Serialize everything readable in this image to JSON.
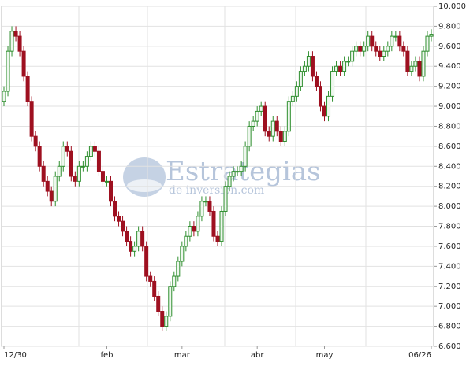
{
  "chart_data": {
    "type": "candlestick",
    "watermark": {
      "brand": "Estrategias",
      "sub": "de inversión.com"
    },
    "categories": [
      "12/30",
      null,
      null,
      null,
      null,
      null,
      null,
      null,
      null,
      null,
      null,
      null,
      null,
      null,
      null,
      null,
      null,
      null,
      null,
      null,
      null,
      null,
      null,
      null,
      null,
      null,
      "feb",
      null,
      null,
      null,
      null,
      null,
      null,
      null,
      null,
      null,
      null,
      null,
      null,
      null,
      null,
      null,
      null,
      null,
      null,
      "mar",
      null,
      null,
      null,
      null,
      null,
      null,
      null,
      null,
      null,
      null,
      null,
      null,
      null,
      null,
      null,
      null,
      null,
      null,
      "abr",
      null,
      null,
      null,
      null,
      null,
      null,
      null,
      null,
      null,
      null,
      null,
      null,
      null,
      null,
      null,
      null,
      "may",
      null,
      null,
      null,
      null,
      null,
      null,
      null,
      null,
      null,
      null,
      null,
      null,
      null,
      null,
      null,
      null,
      null,
      null,
      null,
      null,
      null,
      null,
      null,
      null,
      null,
      null,
      "06/26"
    ],
    "open": [
      9.05,
      9.15,
      9.55,
      9.75,
      9.7,
      9.55,
      9.3,
      9.05,
      8.7,
      8.6,
      8.4,
      8.25,
      8.15,
      8.05,
      8.3,
      8.4,
      8.6,
      8.55,
      8.3,
      8.25,
      8.4,
      8.4,
      8.5,
      8.6,
      8.55,
      8.35,
      8.25,
      8.25,
      8.05,
      7.9,
      7.85,
      7.75,
      7.65,
      7.55,
      7.6,
      7.75,
      7.6,
      7.3,
      7.25,
      7.1,
      6.95,
      6.8,
      6.9,
      7.2,
      7.3,
      7.45,
      7.6,
      7.7,
      7.8,
      7.75,
      7.9,
      8.05,
      8.05,
      7.95,
      7.7,
      7.65,
      7.95,
      8.2,
      8.3,
      8.35,
      8.35,
      8.4,
      8.6,
      8.8,
      8.85,
      8.95,
      9.0,
      8.75,
      8.7,
      8.85,
      8.75,
      8.65,
      8.75,
      9.05,
      9.1,
      9.2,
      9.35,
      9.4,
      9.5,
      9.3,
      9.2,
      9.0,
      8.9,
      9.1,
      9.35,
      9.4,
      9.35,
      9.45,
      9.45,
      9.55,
      9.6,
      9.55,
      9.6,
      9.7,
      9.6,
      9.55,
      9.5,
      9.55,
      9.6,
      9.7,
      9.7,
      9.6,
      9.55,
      9.35,
      9.4,
      9.45,
      9.3,
      9.55,
      9.7
    ],
    "high": [
      9.2,
      9.6,
      9.8,
      9.8,
      9.75,
      9.6,
      9.35,
      9.1,
      8.75,
      8.65,
      8.45,
      8.3,
      8.2,
      8.35,
      8.45,
      8.65,
      8.65,
      8.6,
      8.35,
      8.45,
      8.45,
      8.55,
      8.65,
      8.65,
      8.6,
      8.4,
      8.3,
      8.3,
      8.1,
      7.95,
      7.9,
      7.8,
      7.7,
      7.65,
      7.8,
      7.8,
      7.65,
      7.35,
      7.3,
      7.15,
      7.0,
      6.95,
      7.25,
      7.35,
      7.5,
      7.65,
      7.75,
      7.85,
      7.85,
      7.95,
      8.1,
      8.1,
      8.1,
      8.0,
      7.75,
      8.0,
      8.25,
      8.35,
      8.4,
      8.4,
      8.45,
      8.65,
      8.85,
      8.9,
      9.0,
      9.05,
      9.05,
      8.8,
      8.9,
      8.9,
      8.8,
      8.8,
      9.1,
      9.15,
      9.25,
      9.4,
      9.45,
      9.55,
      9.55,
      9.35,
      9.25,
      9.05,
      9.15,
      9.4,
      9.45,
      9.45,
      9.5,
      9.5,
      9.6,
      9.65,
      9.65,
      9.65,
      9.75,
      9.75,
      9.65,
      9.6,
      9.6,
      9.65,
      9.75,
      9.75,
      9.75,
      9.65,
      9.6,
      9.45,
      9.5,
      9.5,
      9.6,
      9.75,
      9.77
    ],
    "low": [
      9.0,
      9.1,
      9.5,
      9.65,
      9.5,
      9.25,
      9.0,
      8.65,
      8.55,
      8.35,
      8.2,
      8.1,
      8.0,
      8.0,
      8.25,
      8.35,
      8.5,
      8.25,
      8.2,
      8.2,
      8.35,
      8.35,
      8.45,
      8.5,
      8.3,
      8.2,
      8.2,
      8.0,
      7.85,
      7.8,
      7.7,
      7.6,
      7.5,
      7.5,
      7.55,
      7.55,
      7.25,
      7.2,
      7.05,
      6.9,
      6.75,
      6.75,
      6.85,
      7.15,
      7.25,
      7.4,
      7.55,
      7.65,
      7.7,
      7.7,
      7.85,
      8.0,
      7.9,
      7.65,
      7.6,
      7.6,
      7.9,
      8.15,
      8.25,
      8.3,
      8.3,
      8.35,
      8.55,
      8.75,
      8.8,
      8.9,
      8.7,
      8.65,
      8.65,
      8.7,
      8.6,
      8.6,
      8.7,
      9.0,
      9.05,
      9.15,
      9.3,
      9.35,
      9.25,
      9.15,
      8.95,
      8.85,
      8.85,
      9.05,
      9.3,
      9.3,
      9.3,
      9.4,
      9.4,
      9.5,
      9.5,
      9.5,
      9.55,
      9.55,
      9.5,
      9.45,
      9.45,
      9.5,
      9.55,
      9.65,
      9.55,
      9.5,
      9.3,
      9.3,
      9.35,
      9.25,
      9.25,
      9.5,
      9.65
    ],
    "close": [
      9.15,
      9.55,
      9.75,
      9.7,
      9.55,
      9.3,
      9.05,
      8.7,
      8.6,
      8.4,
      8.25,
      8.15,
      8.05,
      8.3,
      8.4,
      8.6,
      8.55,
      8.3,
      8.25,
      8.4,
      8.4,
      8.5,
      8.6,
      8.55,
      8.35,
      8.25,
      8.25,
      8.05,
      7.9,
      7.85,
      7.75,
      7.65,
      7.55,
      7.6,
      7.75,
      7.6,
      7.3,
      7.25,
      7.1,
      6.95,
      6.8,
      6.9,
      7.2,
      7.3,
      7.45,
      7.6,
      7.7,
      7.8,
      7.75,
      7.9,
      8.05,
      8.05,
      7.95,
      7.7,
      7.65,
      7.95,
      8.2,
      8.3,
      8.35,
      8.35,
      8.4,
      8.6,
      8.8,
      8.85,
      8.95,
      9.0,
      8.75,
      8.7,
      8.85,
      8.75,
      8.65,
      8.75,
      9.05,
      9.1,
      9.2,
      9.35,
      9.4,
      9.5,
      9.3,
      9.2,
      9.0,
      8.9,
      9.1,
      9.35,
      9.4,
      9.35,
      9.45,
      9.45,
      9.55,
      9.6,
      9.55,
      9.6,
      9.7,
      9.6,
      9.55,
      9.5,
      9.55,
      9.6,
      9.7,
      9.7,
      9.6,
      9.55,
      9.35,
      9.4,
      9.45,
      9.3,
      9.55,
      9.7,
      9.72
    ],
    "up_color": "#2f8f2f",
    "down_color": "#9e1020",
    "ylim": [
      6.6,
      10.0
    ],
    "yticks": [
      {
        "value": 6.6,
        "label": "6.600"
      },
      {
        "value": 6.8,
        "label": "6.800"
      },
      {
        "value": 7.0,
        "label": "7.000"
      },
      {
        "value": 7.2,
        "label": "7.200"
      },
      {
        "value": 7.4,
        "label": "7.400"
      },
      {
        "value": 7.6,
        "label": "7.600"
      },
      {
        "value": 7.8,
        "label": "7.800"
      },
      {
        "value": 8.0,
        "label": "8.000"
      },
      {
        "value": 8.2,
        "label": "8.200"
      },
      {
        "value": 8.4,
        "label": "8.400"
      },
      {
        "value": 8.6,
        "label": "8.600"
      },
      {
        "value": 8.8,
        "label": "8.800"
      },
      {
        "value": 9.0,
        "label": "9.000"
      },
      {
        "value": 9.2,
        "label": "9.200"
      },
      {
        "value": 9.4,
        "label": "9.400"
      },
      {
        "value": 9.6,
        "label": "9.600"
      },
      {
        "value": 9.8,
        "label": "9.800"
      },
      {
        "value": 10.0,
        "label": "10.000"
      }
    ],
    "grid": true
  }
}
